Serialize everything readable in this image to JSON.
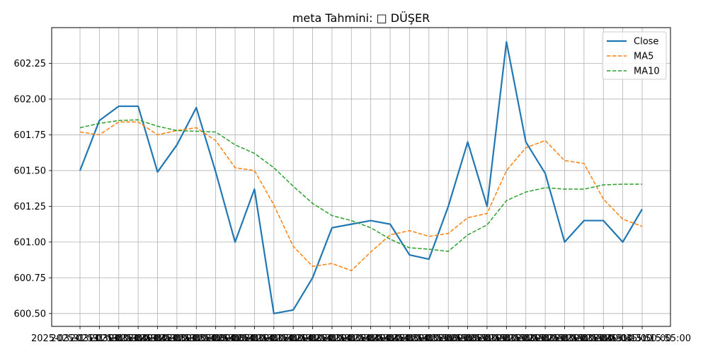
{
  "chart_data": {
    "type": "line",
    "title": "meta Tahmini: □ DÜŞER",
    "xlabel": "",
    "ylabel": "",
    "ylim": [
      600.41,
      602.5
    ],
    "yticks": [
      600.5,
      600.75,
      601.0,
      601.25,
      601.5,
      601.75,
      602.0,
      602.25
    ],
    "ytick_labels": [
      "600.50",
      "600.75",
      "601.00",
      "601.25",
      "601.50",
      "601.75",
      "602.00",
      "602.25"
    ],
    "x": [
      "2025-03-31 13:30:00",
      "2025-03-31 13:35:00",
      "2025-03-31 13:40:00",
      "2025-03-31 13:45:00",
      "2025-03-31 13:50:00",
      "2025-03-31 13:55:00",
      "2025-03-31 14:00:00",
      "2025-03-31 14:05:00",
      "2025-03-31 14:10:00",
      "2025-03-31 14:15:00",
      "2025-03-31 14:20:00",
      "2025-03-31 14:25:00",
      "2025-03-31 14:30:00",
      "2025-03-31 14:35:00",
      "2025-03-31 14:40:00",
      "2025-03-31 14:45:00",
      "2025-03-31 14:50:00",
      "2025-03-31 14:55:00",
      "2025-03-31 15:00:00",
      "2025-03-31 15:05:00",
      "2025-03-31 15:10:00",
      "2025-03-31 15:15:00",
      "2025-03-31 15:20:00",
      "2025-03-31 15:25:00",
      "2025-03-31 15:30:00",
      "2025-03-31 15:35:00",
      "2025-03-31 15:40:00",
      "2025-03-31 15:45:00",
      "2025-03-31 15:50:00",
      "2025-03-31 15:55:00"
    ],
    "series": [
      {
        "name": "Close",
        "color": "#1f77b4",
        "style": "solid",
        "values": [
          601.5,
          601.85,
          601.95,
          601.95,
          601.49,
          601.68,
          601.94,
          601.49,
          601.0,
          601.37,
          600.5,
          600.525,
          600.75,
          601.1,
          601.125,
          601.15,
          601.125,
          600.91,
          600.88,
          601.25,
          601.7,
          601.25,
          602.4,
          601.7,
          601.48,
          601.0,
          601.15,
          601.15,
          601.0,
          601.23
        ]
      },
      {
        "name": "MA5",
        "color": "#ff7f0e",
        "style": "dashed",
        "values": [
          601.77,
          601.75,
          601.84,
          601.84,
          601.75,
          601.78,
          601.8,
          601.71,
          601.52,
          601.5,
          601.26,
          600.97,
          600.83,
          600.85,
          600.8,
          600.93,
          601.05,
          601.08,
          601.04,
          601.06,
          601.17,
          601.2,
          601.5,
          601.66,
          601.71,
          601.57,
          601.55,
          601.3,
          601.16,
          601.11
        ]
      },
      {
        "name": "MA10",
        "color": "#2ca02c",
        "style": "dashed",
        "values": [
          601.8,
          601.83,
          601.85,
          601.855,
          601.81,
          601.78,
          601.775,
          601.77,
          601.68,
          601.62,
          601.52,
          601.39,
          601.27,
          601.185,
          601.15,
          601.1,
          601.02,
          600.96,
          600.95,
          600.935,
          601.05,
          601.12,
          601.29,
          601.35,
          601.38,
          601.37,
          601.37,
          601.4,
          601.405,
          601.405
        ]
      }
    ],
    "grid": true,
    "legend": "top-right"
  }
}
